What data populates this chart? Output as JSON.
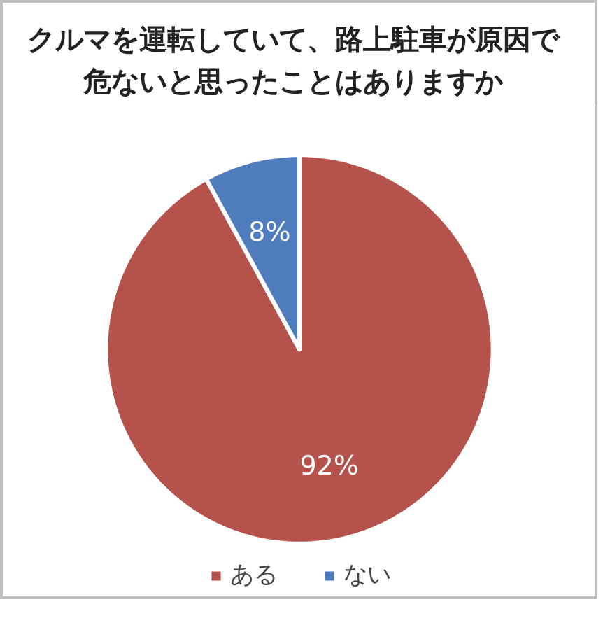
{
  "chart_data": {
    "type": "pie",
    "title": "クルマを運転していて、路上駐車が原因で危ないと思ったことはありますか",
    "categories": [
      "ある",
      "ない"
    ],
    "values": [
      92,
      8
    ],
    "colors": [
      "#b5524c",
      "#4f7cbc"
    ],
    "value_labels": [
      "92%",
      "8%"
    ],
    "legend": "bottom"
  }
}
